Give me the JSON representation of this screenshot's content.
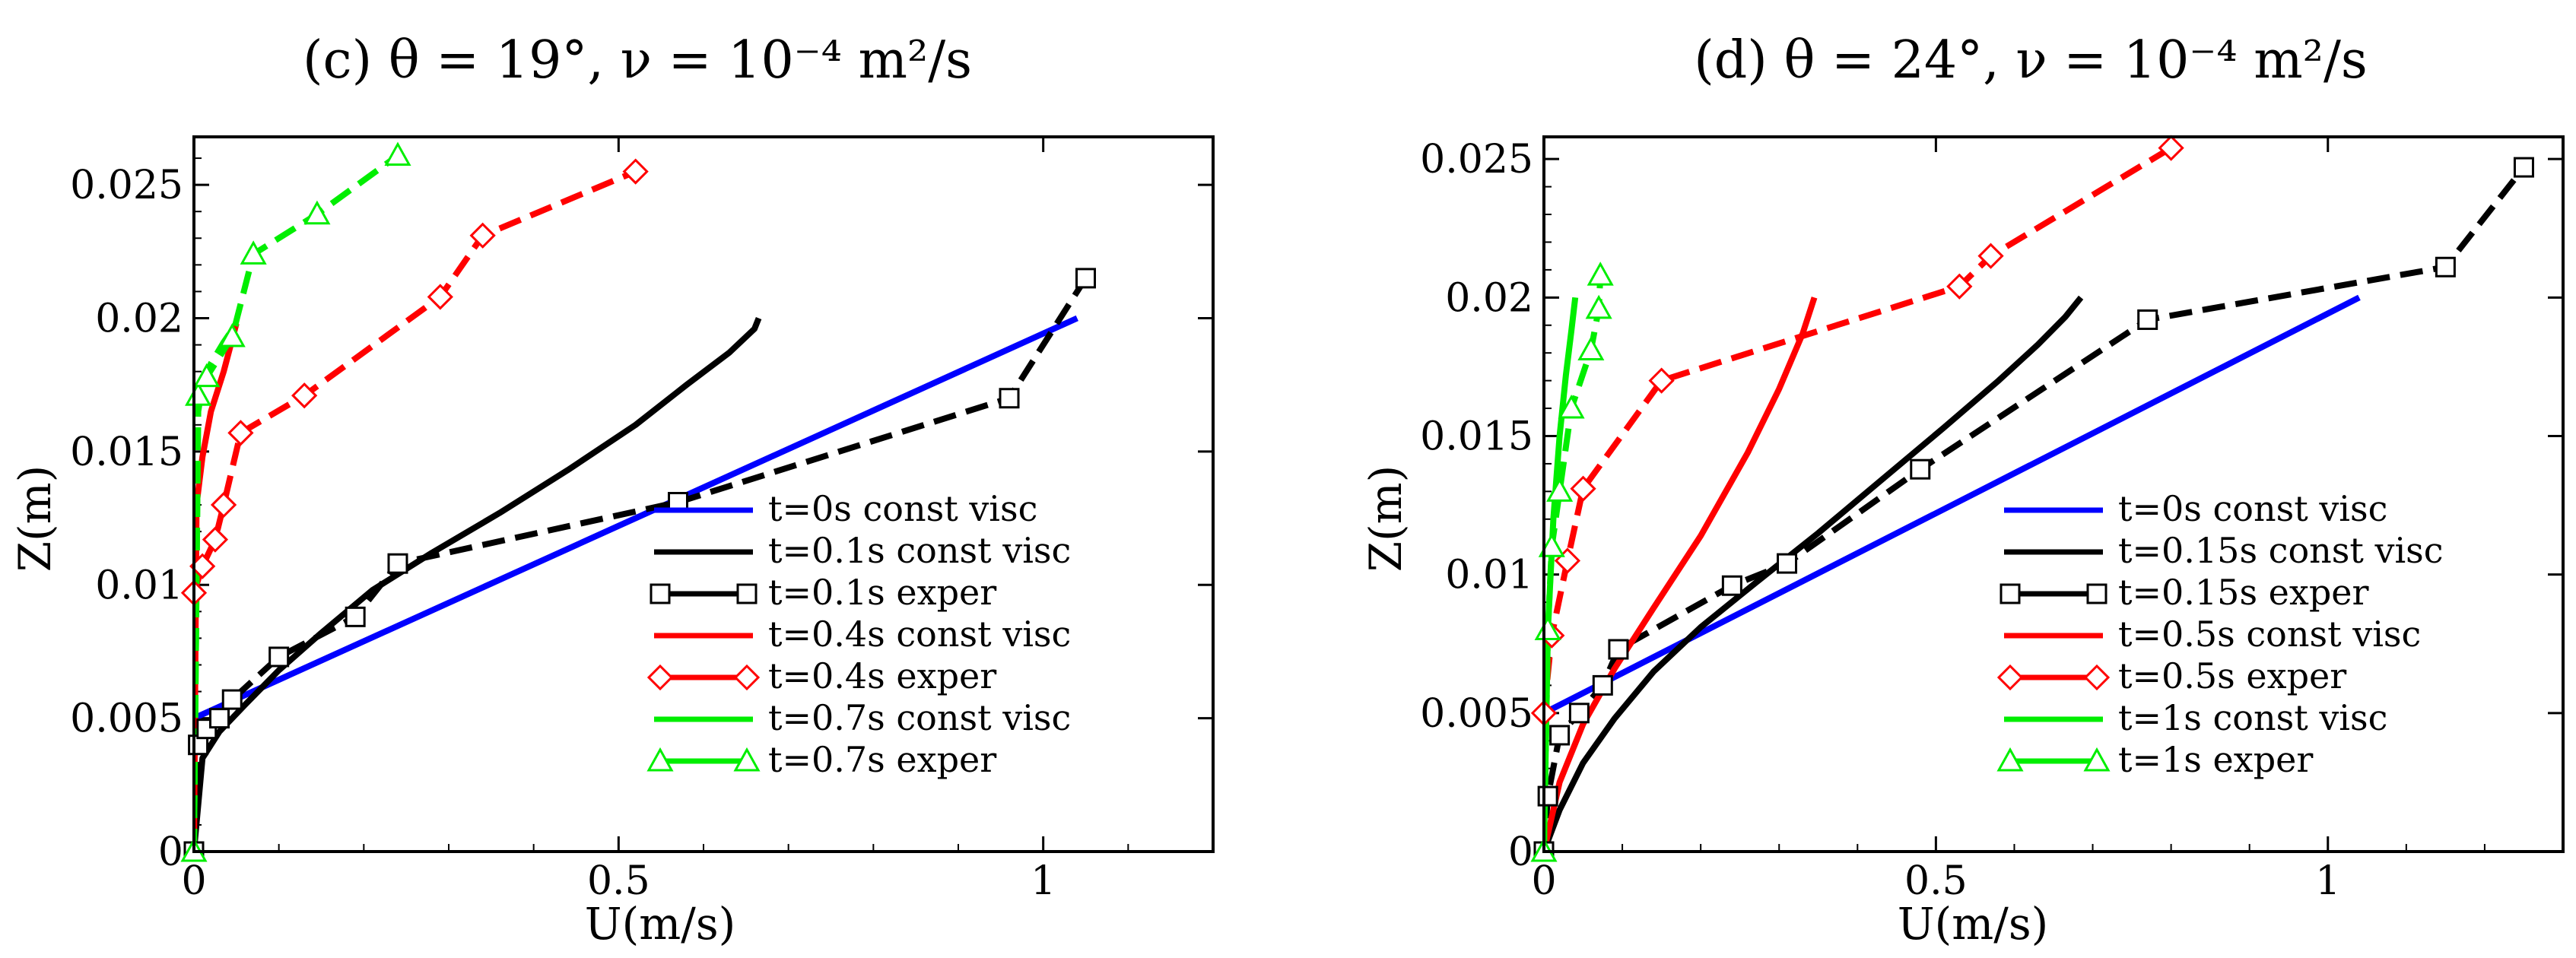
{
  "chart_data": [
    {
      "panel": "c",
      "type": "line",
      "title": "(c) θ = 19°, ν = 10⁻⁴ m²/s",
      "xlabel": "U(m/s)",
      "ylabel": "Z(m)",
      "xlim": [
        0,
        1.2
      ],
      "ylim": [
        0,
        0.0268
      ],
      "xticks": [
        0,
        0.5,
        1
      ],
      "xtick_labels": [
        "0",
        "0.5",
        "1"
      ],
      "yticks": [
        0,
        0.005,
        0.01,
        0.015,
        0.02,
        0.025
      ],
      "ytick_labels": [
        "0",
        "0.005",
        "0.01",
        "0.015",
        "0.02",
        "0.025"
      ],
      "legend_position": "bottom-right",
      "series": [
        {
          "name": "t=0s const visc",
          "color": "#0000ff",
          "style": "solid",
          "marker": "none",
          "x": [
            0,
            1.04
          ],
          "y": [
            0.005,
            0.02
          ]
        },
        {
          "name": "t=0.1s const visc",
          "color": "#000000",
          "style": "solid",
          "marker": "none",
          "x": [
            0,
            0.01,
            0.03,
            0.06,
            0.1,
            0.15,
            0.21,
            0.28,
            0.36,
            0.44,
            0.52,
            0.58,
            0.63,
            0.66,
            0.665
          ],
          "y": [
            0,
            0.0035,
            0.0045,
            0.0055,
            0.0068,
            0.0082,
            0.0098,
            0.0112,
            0.0127,
            0.0143,
            0.016,
            0.0175,
            0.0187,
            0.0196,
            0.02
          ]
        },
        {
          "name": "t=0.1s exper",
          "color": "#000000",
          "style": "dashed",
          "marker": "square",
          "x": [
            0,
            0.005,
            0.015,
            0.03,
            0.045,
            0.1,
            0.19,
            0.24,
            0.57,
            0.96,
            1.05
          ],
          "y": [
            0,
            0.004,
            0.0046,
            0.005,
            0.0057,
            0.0073,
            0.0088,
            0.0108,
            0.0131,
            0.017,
            0.0215
          ]
        },
        {
          "name": "t=0.4s const visc",
          "color": "#ff0000",
          "style": "solid",
          "marker": "none",
          "x": [
            0,
            0.003,
            0.01,
            0.02,
            0.035,
            0.05
          ],
          "y": [
            0,
            0.013,
            0.0148,
            0.0165,
            0.018,
            0.0198
          ]
        },
        {
          "name": "t=0.4s exper",
          "color": "#ff0000",
          "style": "dashed",
          "marker": "diamond",
          "x": [
            0,
            0.01,
            0.025,
            0.035,
            0.055,
            0.13,
            0.29,
            0.34,
            0.52
          ],
          "y": [
            0.0097,
            0.0107,
            0.0117,
            0.013,
            0.0157,
            0.0171,
            0.0208,
            0.0231,
            0.0255
          ]
        },
        {
          "name": "t=0.7s const visc",
          "color": "#00ee00",
          "style": "dashed",
          "marker": "none",
          "x": [
            0,
            0.005,
            0.01,
            0.02,
            0.035,
            0.05
          ],
          "y": [
            0,
            0.0165,
            0.0175,
            0.0183,
            0.0191,
            0.0198
          ]
        },
        {
          "name": "t=0.7s exper",
          "color": "#00ee00",
          "style": "dashed",
          "marker": "triangle",
          "x": [
            0,
            0.005,
            0.015,
            0.045,
            0.07,
            0.145,
            0.24
          ],
          "y": [
            0,
            0.0171,
            0.0178,
            0.0193,
            0.0224,
            0.0239,
            0.0261
          ]
        }
      ]
    },
    {
      "panel": "d",
      "type": "line",
      "title": "(d) θ = 24°, ν = 10⁻⁴ m²/s",
      "xlabel": "U(m/s)",
      "ylabel": "Z(m)",
      "xlim": [
        0,
        1.3
      ],
      "ylim": [
        0,
        0.0258
      ],
      "xticks": [
        0,
        0.5,
        1
      ],
      "xtick_labels": [
        "0",
        "0.5",
        "1"
      ],
      "yticks": [
        0,
        0.005,
        0.01,
        0.015,
        0.02,
        0.025
      ],
      "ytick_labels": [
        "0",
        "0.005",
        "0.01",
        "0.015",
        "0.02",
        "0.025"
      ],
      "legend_position": "bottom-right",
      "series": [
        {
          "name": "t=0s const visc",
          "color": "#0000ff",
          "style": "solid",
          "marker": "none",
          "x": [
            0,
            1.04
          ],
          "y": [
            0.005,
            0.02
          ]
        },
        {
          "name": "t=0.15s const visc",
          "color": "#000000",
          "style": "solid",
          "marker": "none",
          "x": [
            0,
            0.02,
            0.05,
            0.09,
            0.14,
            0.2,
            0.27,
            0.35,
            0.43,
            0.51,
            0.58,
            0.63,
            0.665,
            0.685
          ],
          "y": [
            0,
            0.0015,
            0.0032,
            0.0048,
            0.0065,
            0.0081,
            0.0097,
            0.0115,
            0.0134,
            0.0153,
            0.017,
            0.0183,
            0.0193,
            0.02
          ]
        },
        {
          "name": "t=0.15s exper",
          "color": "#000000",
          "style": "dashed",
          "marker": "square",
          "x": [
            0,
            0.005,
            0.02,
            0.045,
            0.075,
            0.095,
            0.24,
            0.31,
            0.48,
            0.77,
            1.15,
            1.25
          ],
          "y": [
            0,
            0.002,
            0.0042,
            0.005,
            0.006,
            0.0073,
            0.0096,
            0.0104,
            0.0138,
            0.0192,
            0.0211,
            0.0247
          ]
        },
        {
          "name": "t=0.5s const visc",
          "color": "#ff0000",
          "style": "solid",
          "marker": "none",
          "x": [
            0,
            0.02,
            0.05,
            0.09,
            0.14,
            0.2,
            0.26,
            0.3,
            0.33,
            0.345
          ],
          "y": [
            0,
            0.0025,
            0.0046,
            0.0066,
            0.0088,
            0.0114,
            0.0144,
            0.0167,
            0.0187,
            0.02
          ]
        },
        {
          "name": "t=0.5s exper",
          "color": "#ff0000",
          "style": "dashed",
          "marker": "diamond",
          "x": [
            0,
            0.01,
            0.03,
            0.05,
            0.15,
            0.53,
            0.57,
            0.8
          ],
          "y": [
            0.005,
            0.0078,
            0.0105,
            0.0131,
            0.017,
            0.0204,
            0.0215,
            0.0254
          ]
        },
        {
          "name": "t=1s const visc",
          "color": "#00ee00",
          "style": "solid",
          "marker": "none",
          "x": [
            0,
            0.005,
            0.012,
            0.02,
            0.028,
            0.035,
            0.04
          ],
          "y": [
            0,
            0.008,
            0.012,
            0.015,
            0.0172,
            0.0188,
            0.02
          ]
        },
        {
          "name": "t=1s exper",
          "color": "#00ee00",
          "style": "dashed",
          "marker": "triangle",
          "x": [
            0,
            0.005,
            0.01,
            0.02,
            0.035,
            0.06,
            0.07,
            0.072
          ],
          "y": [
            0,
            0.008,
            0.011,
            0.013,
            0.016,
            0.0181,
            0.0196,
            0.0208
          ]
        }
      ]
    }
  ]
}
